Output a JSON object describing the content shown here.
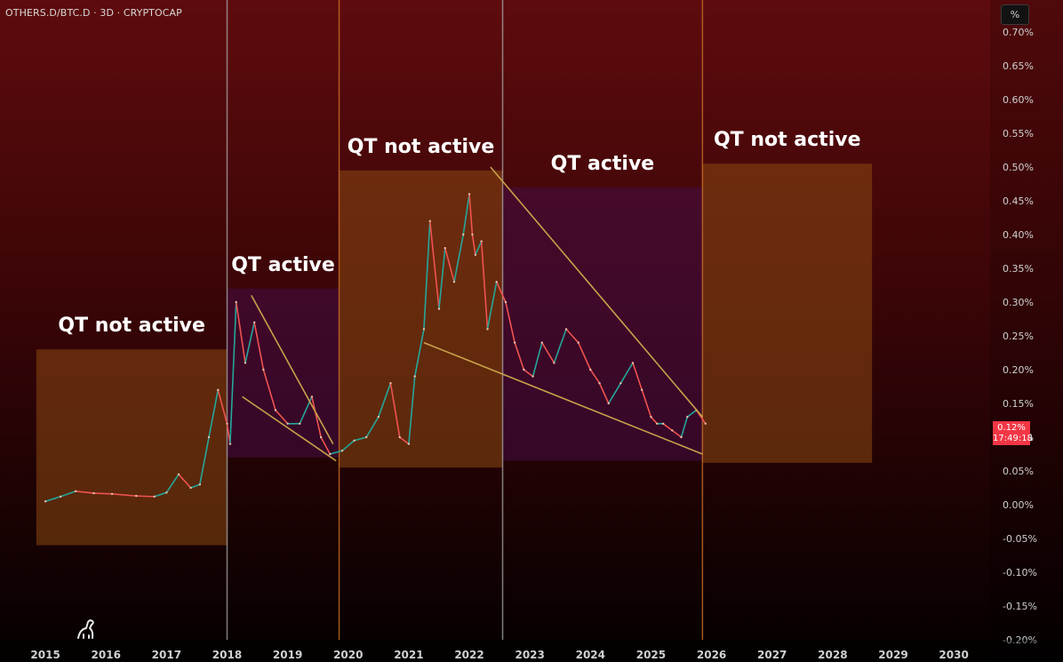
{
  "header": {
    "symbol": "OTHERS.D/BTC.D · 3D · CRYPTOCAP",
    "unit_button": "%"
  },
  "price_badge": {
    "value": "0.12%",
    "countdown": "17:49:18"
  },
  "colors": {
    "up": "#26a69a",
    "down": "#ef5350",
    "trendline": "#c9a24a",
    "accent_red": "#f23645"
  },
  "icons": {
    "logo": "tradingview-dino-icon"
  },
  "chart_data": {
    "type": "line",
    "title": "OTHERS.D/BTC.D · 3D · CRYPTOCAP",
    "y_unit": "%",
    "ylim": [
      -0.2,
      0.7
    ],
    "y_ticks": [
      "0.70%",
      "0.65%",
      "0.60%",
      "0.55%",
      "0.50%",
      "0.45%",
      "0.40%",
      "0.35%",
      "0.30%",
      "0.25%",
      "0.20%",
      "0.15%",
      "0.10%",
      "0.05%",
      "0.00%",
      "-0.05%",
      "-0.10%",
      "-0.15%",
      "-0.20%"
    ],
    "x_ticks": [
      "2015",
      "2016",
      "2017",
      "2018",
      "2019",
      "2020",
      "2021",
      "2022",
      "2023",
      "2024",
      "2025",
      "2026",
      "2027",
      "2028",
      "2029",
      "2030"
    ],
    "xlim": [
      2014.25,
      2030.6
    ],
    "series": [
      {
        "name": "OTHERS.D/BTC.D",
        "x": [
          2015.0,
          2015.25,
          2015.5,
          2015.8,
          2016.1,
          2016.5,
          2016.8,
          2017.0,
          2017.2,
          2017.4,
          2017.55,
          2017.7,
          2017.85,
          2018.0,
          2018.05,
          2018.15,
          2018.3,
          2018.45,
          2018.6,
          2018.8,
          2019.0,
          2019.2,
          2019.4,
          2019.55,
          2019.7,
          2019.9,
          2020.1,
          2020.3,
          2020.5,
          2020.7,
          2020.85,
          2021.0,
          2021.1,
          2021.25,
          2021.35,
          2021.5,
          2021.6,
          2021.75,
          2021.9,
          2022.0,
          2022.05,
          2022.1,
          2022.2,
          2022.3,
          2022.45,
          2022.6,
          2022.75,
          2022.9,
          2023.05,
          2023.2,
          2023.4,
          2023.6,
          2023.8,
          2024.0,
          2024.15,
          2024.3,
          2024.5,
          2024.7,
          2024.85,
          2025.0,
          2025.1,
          2025.2,
          2025.35,
          2025.5,
          2025.6,
          2025.75,
          2025.9
        ],
        "values": [
          0.005,
          0.012,
          0.02,
          0.017,
          0.016,
          0.013,
          0.012,
          0.018,
          0.045,
          0.025,
          0.03,
          0.1,
          0.17,
          0.12,
          0.09,
          0.3,
          0.21,
          0.27,
          0.2,
          0.14,
          0.12,
          0.12,
          0.16,
          0.1,
          0.075,
          0.08,
          0.095,
          0.1,
          0.13,
          0.18,
          0.1,
          0.09,
          0.19,
          0.26,
          0.42,
          0.29,
          0.38,
          0.33,
          0.4,
          0.46,
          0.4,
          0.37,
          0.39,
          0.26,
          0.33,
          0.3,
          0.24,
          0.2,
          0.19,
          0.24,
          0.21,
          0.26,
          0.24,
          0.2,
          0.18,
          0.15,
          0.18,
          0.21,
          0.17,
          0.13,
          0.12,
          0.12,
          0.11,
          0.1,
          0.13,
          0.14,
          0.12
        ]
      }
    ],
    "annotations": [
      {
        "label": "QT not active",
        "x_from": 2014.85,
        "x_to": 2018.0,
        "y_from": -0.06,
        "y_to": 0.23,
        "color": "orange"
      },
      {
        "label": "QT active",
        "x_from": 2018.0,
        "x_to": 2019.85,
        "y_from": 0.07,
        "y_to": 0.32,
        "color": "purple"
      },
      {
        "label": "QT not active",
        "x_from": 2019.85,
        "x_to": 2022.55,
        "y_from": 0.055,
        "y_to": 0.495,
        "color": "orange"
      },
      {
        "label": "QT active",
        "x_from": 2022.55,
        "x_to": 2025.85,
        "y_from": 0.065,
        "y_to": 0.47,
        "color": "purple"
      },
      {
        "label": "QT not active",
        "x_from": 2025.85,
        "x_to": 2028.65,
        "y_from": 0.062,
        "y_to": 0.505,
        "color": "orange"
      }
    ],
    "vertical_lines": [
      {
        "x": 2018.0,
        "color": "grey"
      },
      {
        "x": 2019.85,
        "color": "orange"
      },
      {
        "x": 2022.55,
        "color": "grey"
      },
      {
        "x": 2025.85,
        "color": "orange"
      }
    ],
    "trendlines": [
      {
        "x1": 2018.4,
        "y1": 0.31,
        "x2": 2019.75,
        "y2": 0.09
      },
      {
        "x1": 2018.25,
        "y1": 0.16,
        "x2": 2019.8,
        "y2": 0.065
      },
      {
        "x1": 2022.35,
        "y1": 0.5,
        "x2": 2025.85,
        "y2": 0.13
      },
      {
        "x1": 2021.25,
        "y1": 0.24,
        "x2": 2025.85,
        "y2": 0.075
      }
    ],
    "grid": false,
    "legend": "none"
  }
}
